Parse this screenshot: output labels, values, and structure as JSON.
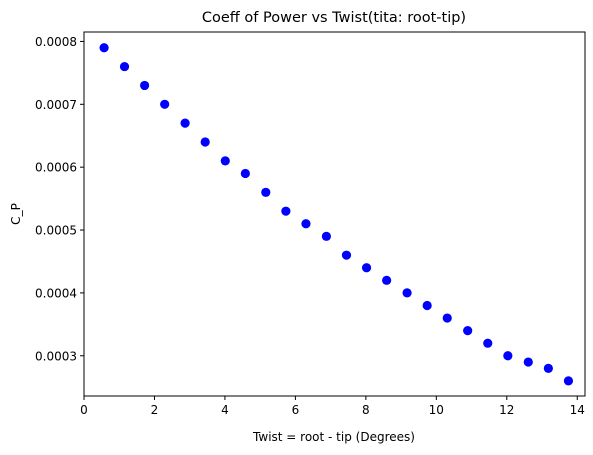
{
  "chart_data": {
    "type": "scatter",
    "title": "Coeff of Power vs Twist(tita: root-tip)",
    "xlabel": "Twist = root - tip (Degrees)",
    "ylabel": "C_P",
    "xlim": [
      0.0,
      14.22
    ],
    "ylim": [
      0.000236,
      0.000815
    ],
    "xticks": [
      "0",
      "2",
      "4",
      "6",
      "8",
      "10",
      "12",
      "14"
    ],
    "yticks": [
      "0.0003",
      "0.0004",
      "0.0005",
      "0.0006",
      "0.0007",
      "0.0008"
    ],
    "grid": false,
    "marker_color": "#0000ff",
    "series": [
      {
        "x": [
          0.57,
          1.15,
          1.72,
          2.29,
          2.87,
          3.44,
          4.01,
          4.58,
          5.16,
          5.73,
          6.3,
          6.88,
          7.45,
          8.02,
          8.59,
          9.17,
          9.74,
          10.31,
          10.89,
          11.46,
          12.03,
          12.61,
          13.18,
          13.75
        ],
        "y": [
          0.00079,
          0.00076,
          0.00073,
          0.0007,
          0.00067,
          0.00064,
          0.00061,
          0.00059,
          0.00056,
          0.00053,
          0.00051,
          0.00049,
          0.00046,
          0.00044,
          0.00042,
          0.0004,
          0.00038,
          0.00036,
          0.00034,
          0.00032,
          0.0003,
          0.00029,
          0.00028,
          0.00026
        ]
      }
    ]
  }
}
